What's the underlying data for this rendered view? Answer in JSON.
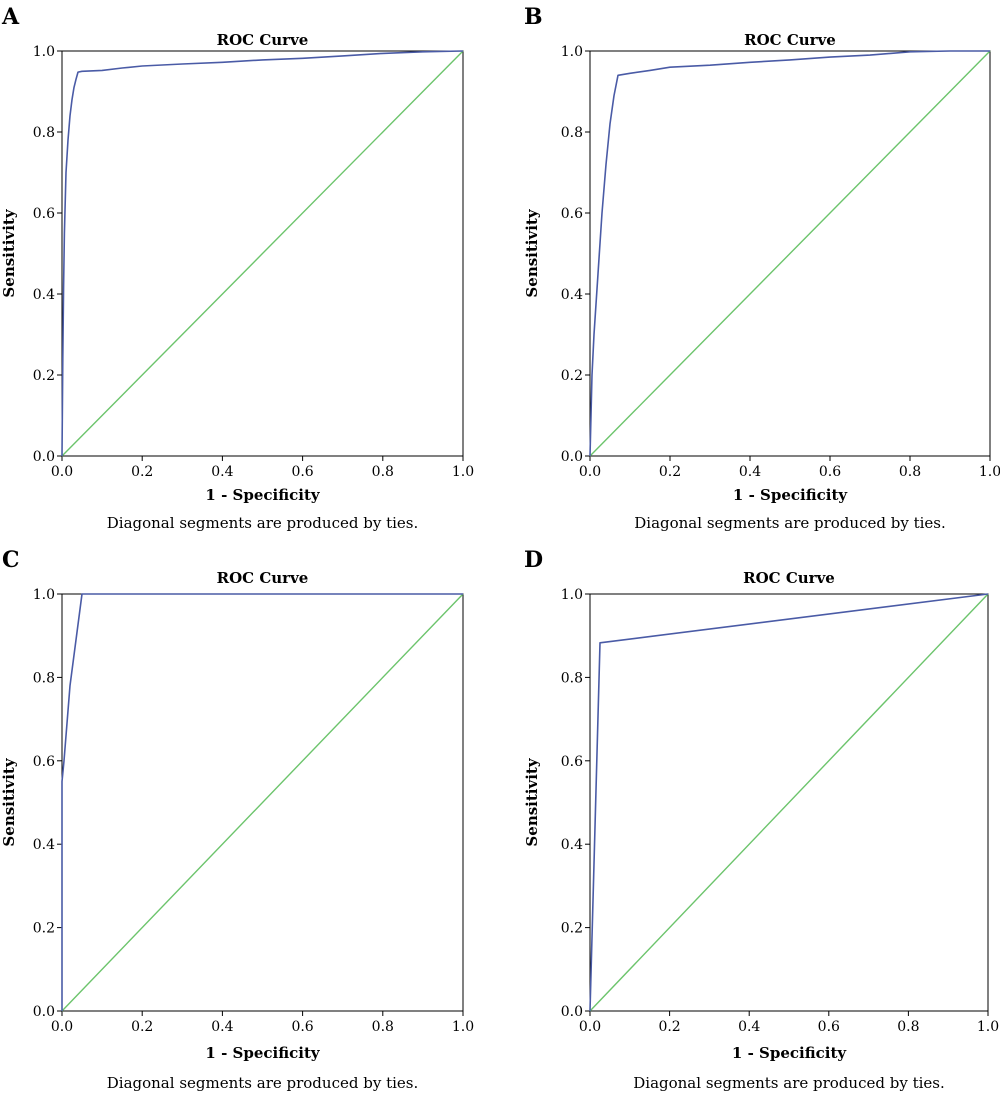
{
  "figure": {
    "footnote": "Diagonal segments are produced by ties."
  },
  "colors": {
    "roc": "#4a5ba6",
    "reference": "#6cc46c",
    "frame": "#000000"
  },
  "chart_data": [
    {
      "panel": "A",
      "type": "line",
      "title": "ROC Curve",
      "xlabel": "1 - Specificity",
      "ylabel": "Sensitivity",
      "xlim": [
        0,
        1
      ],
      "ylim": [
        0,
        1
      ],
      "ticks": [
        "0.0",
        "0.2",
        "0.4",
        "0.6",
        "0.8",
        "1.0"
      ],
      "grid": false,
      "series": [
        {
          "x": [
            0,
            0.002,
            0.004,
            0.006,
            0.01,
            0.015,
            0.02,
            0.025,
            0.03,
            0.035,
            0.04,
            0.05,
            0.1,
            0.15,
            0.2,
            0.3,
            0.4,
            0.5,
            0.6,
            0.7,
            0.8,
            0.9,
            1.0
          ],
          "y": [
            0,
            0.24,
            0.42,
            0.55,
            0.7,
            0.78,
            0.84,
            0.88,
            0.91,
            0.93,
            0.948,
            0.95,
            0.952,
            0.958,
            0.963,
            0.968,
            0.972,
            0.978,
            0.982,
            0.988,
            0.994,
            0.998,
            1.0
          ]
        },
        {
          "x": [
            0,
            1
          ],
          "y": [
            0,
            1
          ]
        }
      ]
    },
    {
      "panel": "B",
      "type": "line",
      "title": "ROC Curve",
      "xlabel": "1 - Specificity",
      "ylabel": "Sensitivity",
      "xlim": [
        0,
        1
      ],
      "ylim": [
        0,
        1
      ],
      "ticks": [
        "0.0",
        "0.2",
        "0.4",
        "0.6",
        "0.8",
        "1.0"
      ],
      "grid": false,
      "series": [
        {
          "x": [
            0,
            0.005,
            0.01,
            0.02,
            0.03,
            0.04,
            0.05,
            0.06,
            0.07,
            0.1,
            0.15,
            0.2,
            0.3,
            0.4,
            0.5,
            0.6,
            0.7,
            0.8,
            0.9,
            1.0
          ],
          "y": [
            0,
            0.2,
            0.3,
            0.45,
            0.6,
            0.72,
            0.82,
            0.89,
            0.94,
            0.945,
            0.952,
            0.96,
            0.965,
            0.972,
            0.978,
            0.985,
            0.99,
            0.998,
            1.0,
            1.0
          ]
        },
        {
          "x": [
            0,
            1
          ],
          "y": [
            0,
            1
          ]
        }
      ]
    },
    {
      "panel": "C",
      "type": "line",
      "title": "ROC Curve",
      "xlabel": "1 - Specificity",
      "ylabel": "Sensitivity",
      "xlim": [
        0,
        1
      ],
      "ylim": [
        0,
        1
      ],
      "ticks": [
        "0.0",
        "0.2",
        "0.4",
        "0.6",
        "0.8",
        "1.0"
      ],
      "grid": false,
      "series": [
        {
          "x": [
            0,
            0.0,
            0.005,
            0.02,
            0.05,
            1.0
          ],
          "y": [
            0,
            0.55,
            0.6,
            0.78,
            1.0,
            1.0
          ]
        },
        {
          "x": [
            0,
            1
          ],
          "y": [
            0,
            1
          ]
        }
      ]
    },
    {
      "panel": "D",
      "type": "line",
      "title": "ROC Curve",
      "xlabel": "1 - Specificity",
      "ylabel": "Sensitivity",
      "xlim": [
        0,
        1
      ],
      "ylim": [
        0,
        1
      ],
      "ticks": [
        "0.0",
        "0.2",
        "0.4",
        "0.6",
        "0.8",
        "1.0"
      ],
      "grid": false,
      "series": [
        {
          "x": [
            0,
            0.025,
            1.0
          ],
          "y": [
            0,
            0.883,
            1.0
          ]
        },
        {
          "x": [
            0,
            1
          ],
          "y": [
            0,
            1
          ]
        }
      ]
    }
  ]
}
